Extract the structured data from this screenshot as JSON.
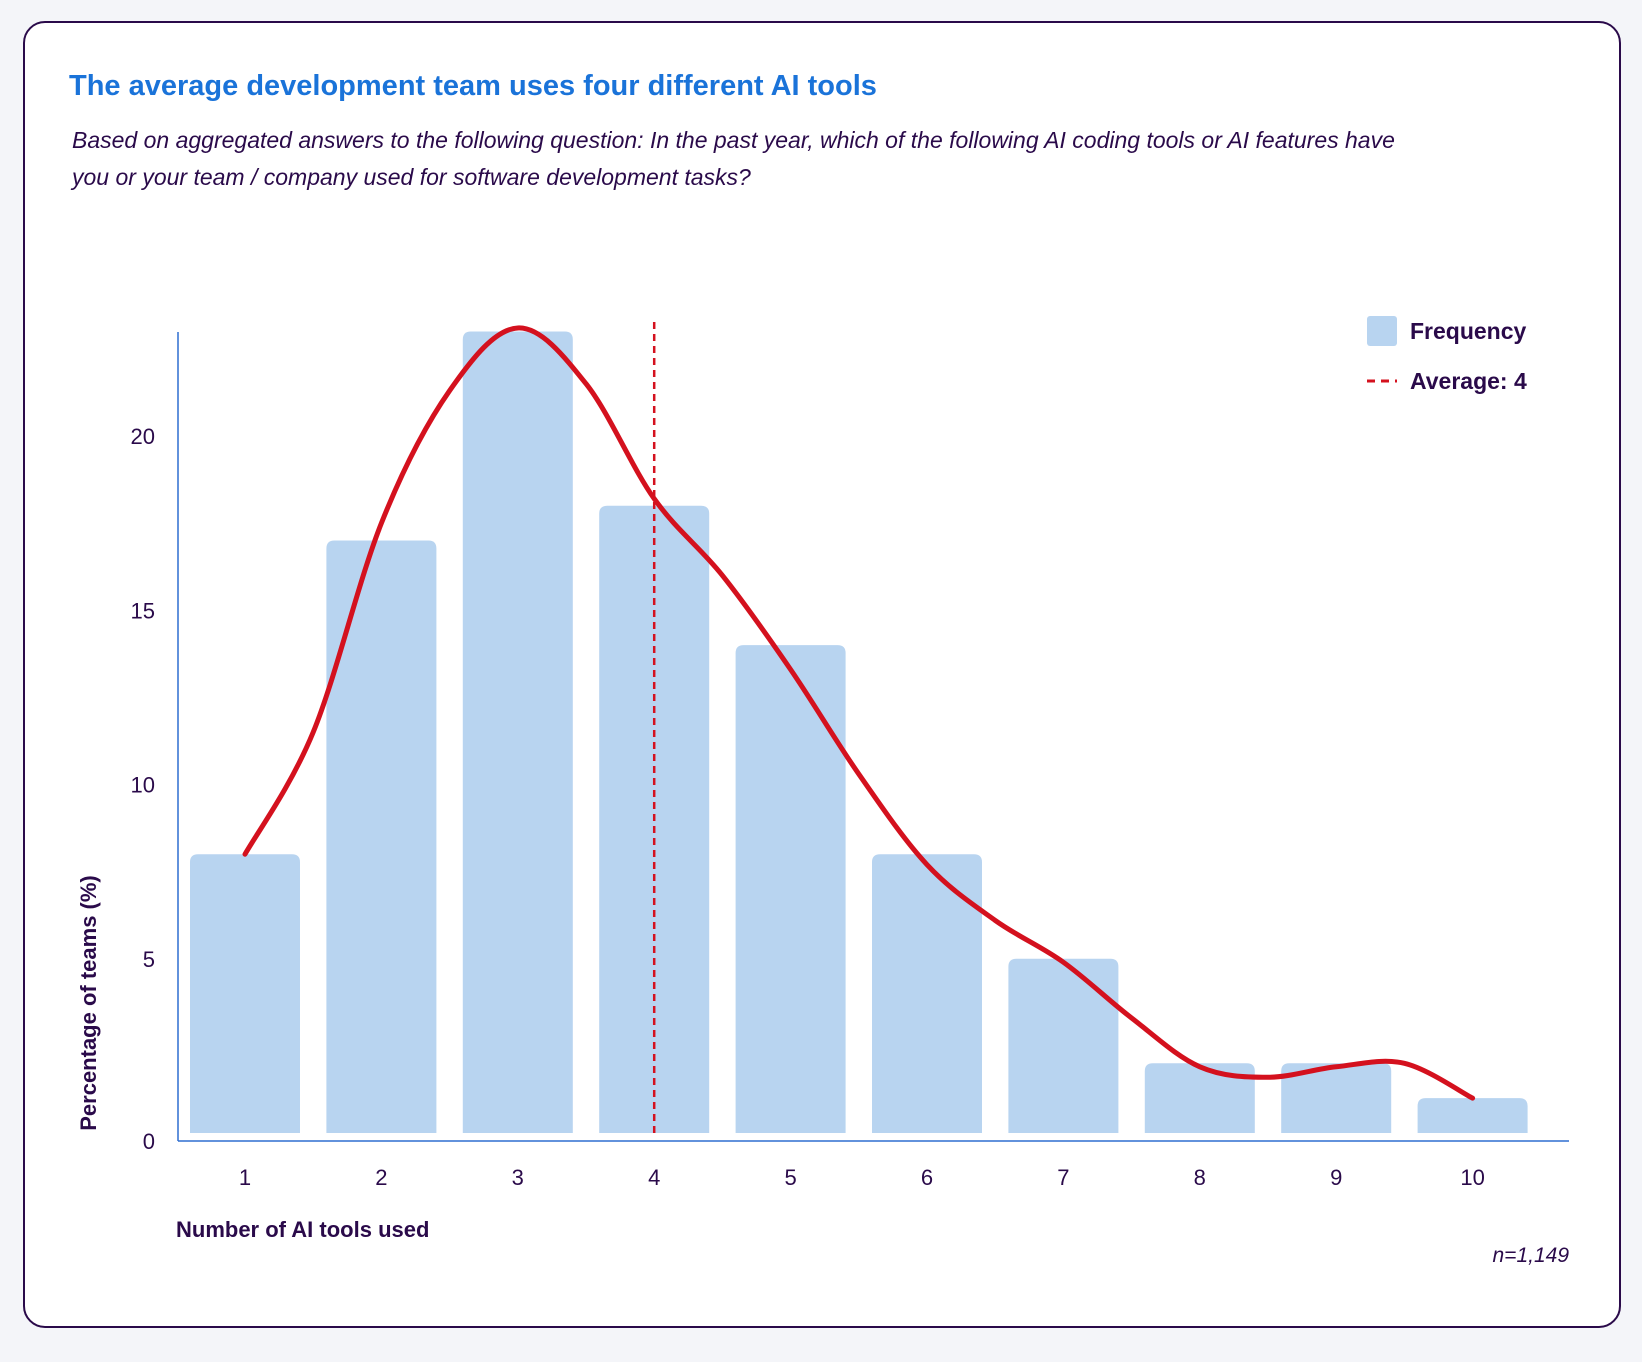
{
  "chart_data": {
    "type": "bar",
    "title": "The average development team uses four different AI tools",
    "subtitle": "Based on aggregated answers to the following question: In the past year, which of the following AI coding tools or AI features have you or your team / company used for software development tasks?",
    "xlabel": "Number of AI tools used",
    "ylabel": "Percentage of teams (%)",
    "categories": [
      "1",
      "2",
      "3",
      "4",
      "5",
      "6",
      "7",
      "8",
      "9",
      "10"
    ],
    "series": [
      {
        "name": "Frequency",
        "values": [
          8,
          17,
          23,
          18,
          14,
          8,
          5,
          2,
          2,
          1
        ],
        "color": "#b8d4f0"
      }
    ],
    "smoothed_curve": {
      "x": [
        1,
        1.5,
        2,
        2.5,
        3,
        3.5,
        4,
        4.5,
        5,
        5.5,
        6,
        6.5,
        7,
        7.5,
        8,
        8.5,
        9,
        9.5,
        10
      ],
      "y": [
        8,
        11.5,
        17.5,
        21.3,
        23.1,
        21.5,
        18.2,
        16,
        13.3,
        10.3,
        7.7,
        6.1,
        4.9,
        3.3,
        1.9,
        1.6,
        1.9,
        2,
        1
      ],
      "color": "#d4111e"
    },
    "average": {
      "value": 4,
      "label": "Average: 4",
      "color": "#d4111e"
    },
    "yticks": [
      0,
      5,
      10,
      15,
      20
    ],
    "ylim": [
      0,
      23.2
    ],
    "legend": {
      "position": "top-right",
      "items": [
        "Frequency",
        "Average: 4"
      ]
    },
    "grid": false,
    "note": "n=1,149"
  },
  "colors": {
    "title": "#1a73d9",
    "text": "#2a0a4a",
    "axis": "#2f6fd0"
  }
}
